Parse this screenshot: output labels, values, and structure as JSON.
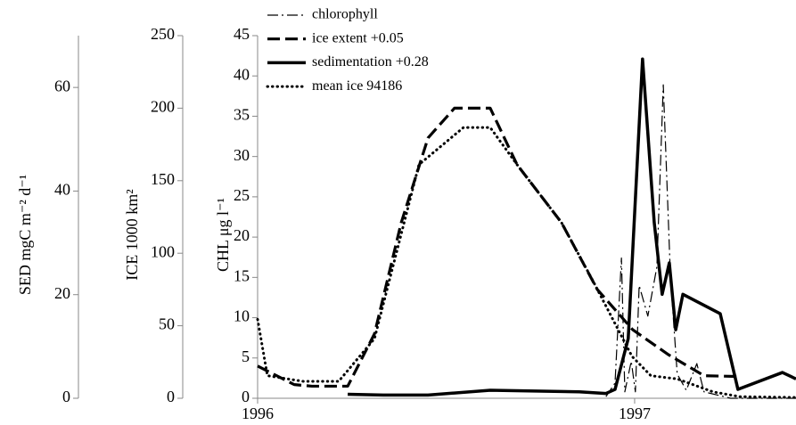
{
  "chart_data": {
    "type": "line",
    "xlim": [
      1996,
      1997.428
    ],
    "xticks": [
      1996,
      1997
    ],
    "ylim": [
      0,
      45
    ],
    "yticks": [
      0,
      5,
      10,
      15,
      20,
      25,
      30,
      35,
      40,
      45
    ],
    "ylabel": "CHL μg l⁻¹",
    "extra_axes": [
      {
        "label": "SED mgC m⁻² d⁻¹",
        "ylim": [
          0,
          70
        ],
        "yticks": [
          0,
          20,
          40,
          60
        ]
      },
      {
        "label": "ICE 1000 km²",
        "ylim": [
          0,
          250
        ],
        "yticks": [
          0,
          50,
          100,
          150,
          200,
          250
        ]
      }
    ],
    "series": [
      {
        "name": "chlorophyll",
        "color": "#000000",
        "style": "dash-dot",
        "x": [
          1996.924,
          1996.948,
          1996.965,
          1996.974,
          1996.991,
          1997.002,
          1997.012,
          1997.035,
          1997.059,
          1997.076,
          1997.095,
          1997.113,
          1997.137,
          1997.165,
          1997.184,
          1997.255,
          1997.428
        ],
        "values": [
          0.2,
          1.9,
          17.4,
          0.8,
          4.6,
          0.8,
          14.0,
          10.2,
          16.3,
          38.9,
          15.1,
          3.0,
          1.0,
          4.3,
          0.8,
          0,
          0
        ]
      },
      {
        "name": "ice extent +0.05",
        "color": "#000000",
        "style": "dashed",
        "x": [
          1996,
          1996.097,
          1996.144,
          1996.239,
          1996.31,
          1996.381,
          1996.452,
          1996.522,
          1996.617,
          1996.688,
          1996.806,
          1996.901,
          1996.995,
          1997.09,
          1997.184,
          1997.279
        ],
        "values": [
          4.0,
          1.7,
          1.5,
          1.5,
          8.0,
          21.8,
          32.3,
          36.0,
          36.0,
          29.0,
          21.8,
          13.5,
          8.5,
          5.4,
          2.8,
          2.7
        ]
      },
      {
        "name": "sedimentation +0.28",
        "color": "#000000",
        "style": "solid",
        "x": [
          1996.239,
          1996.333,
          1996.452,
          1996.617,
          1996.735,
          1996.853,
          1996.924,
          1996.948,
          1996.983,
          1997.021,
          1997.052,
          1997.073,
          1997.092,
          1997.109,
          1997.128,
          1997.227,
          1997.274,
          1997.392,
          1997.428
        ],
        "values": [
          0.5,
          0.4,
          0.4,
          1.0,
          0.9,
          0.8,
          0.6,
          1.1,
          7.4,
          42.1,
          21.8,
          12.9,
          16.8,
          8.5,
          12.9,
          10.5,
          1.1,
          3.2,
          2.4
        ]
      },
      {
        "name": "mean ice 94186",
        "color": "#000000",
        "style": "dotted",
        "x": [
          1996,
          1996.026,
          1996.121,
          1996.215,
          1996.31,
          1996.428,
          1996.546,
          1996.617,
          1996.688,
          1996.806,
          1996.889,
          1996.993,
          1997.043,
          1997.113,
          1997.208,
          1997.279,
          1997.428
        ],
        "values": [
          9.8,
          2.8,
          2.1,
          2.1,
          7.4,
          29.0,
          33.6,
          33.6,
          29.0,
          21.8,
          14.6,
          5.2,
          2.8,
          2.4,
          0.8,
          0.2,
          0.1
        ]
      }
    ]
  }
}
